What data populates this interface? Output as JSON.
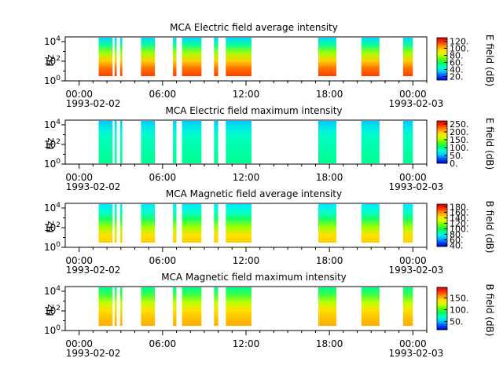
{
  "time_axis": {
    "tick_labels": [
      "00:00",
      "06:00",
      "12:00",
      "18:00",
      "00:00"
    ],
    "tick_hours": [
      0,
      6,
      12,
      18,
      24
    ],
    "date_labels": [
      "1993-02-02",
      "1993-02-03"
    ],
    "minor_tick_hours": [
      1,
      2,
      3,
      4,
      5,
      7,
      8,
      9,
      10,
      11,
      13,
      14,
      15,
      16,
      17,
      19,
      20,
      21,
      22,
      23,
      25
    ],
    "range_hours": [
      -1,
      25
    ]
  },
  "chart_data": [
    {
      "type": "heatmap",
      "title": "MCA  Electric field average intensity",
      "ylabel": "Hz",
      "yscale": "log",
      "y_ticks": [
        "10^0",
        "10^2",
        "10^4"
      ],
      "ylim": [
        1,
        30000
      ],
      "colorbar": {
        "label": "E field (dB)",
        "ticks": [
          "20.",
          "40.",
          "60.",
          "80.",
          "100.",
          "120."
        ],
        "range": [
          10,
          130
        ]
      },
      "data_intervals_hours": [
        [
          1.4,
          2.4
        ],
        [
          2.55,
          2.7
        ],
        [
          2.95,
          3.1
        ],
        [
          4.45,
          5.45
        ],
        [
          6.75,
          7.0
        ],
        [
          7.4,
          8.8
        ],
        [
          9.7,
          10.0
        ],
        [
          10.55,
          12.4
        ],
        [
          17.2,
          18.5
        ],
        [
          20.3,
          21.6
        ],
        [
          23.3,
          24.0
        ]
      ]
    },
    {
      "type": "heatmap",
      "title": "MCA  Electric field maximum intensity",
      "ylabel": "Hz",
      "yscale": "log",
      "y_ticks": [
        "10^0",
        "10^2",
        "10^4"
      ],
      "ylim": [
        1,
        30000
      ],
      "colorbar": {
        "label": "E field (dB)",
        "ticks": [
          "0.",
          "50.",
          "100.",
          "150.",
          "200.",
          "250."
        ],
        "range": [
          0,
          270
        ]
      },
      "data_intervals_hours": [
        [
          1.4,
          2.4
        ],
        [
          2.55,
          2.7
        ],
        [
          2.95,
          3.1
        ],
        [
          4.45,
          5.45
        ],
        [
          6.75,
          7.0
        ],
        [
          7.4,
          8.8
        ],
        [
          9.7,
          10.0
        ],
        [
          10.55,
          12.4
        ],
        [
          17.2,
          18.5
        ],
        [
          20.3,
          21.6
        ],
        [
          23.3,
          24.0
        ]
      ]
    },
    {
      "type": "heatmap",
      "title": "MCA  Magnetic field average intensity",
      "ylabel": "Hz",
      "yscale": "log",
      "y_ticks": [
        "10^0",
        "10^2",
        "10^4"
      ],
      "ylim": [
        1,
        30000
      ],
      "colorbar": {
        "label": "B field (dB)",
        "ticks": [
          "40.",
          "60.",
          "80.",
          "100.",
          "120.",
          "140.",
          "160.",
          "180."
        ],
        "range": [
          35,
          190
        ]
      },
      "data_intervals_hours": [
        [
          1.4,
          2.4
        ],
        [
          2.55,
          2.7
        ],
        [
          2.95,
          3.1
        ],
        [
          4.45,
          5.45
        ],
        [
          6.75,
          7.0
        ],
        [
          7.4,
          8.8
        ],
        [
          9.7,
          10.0
        ],
        [
          10.55,
          12.4
        ],
        [
          17.2,
          18.5
        ],
        [
          20.3,
          21.6
        ],
        [
          23.3,
          24.0
        ]
      ]
    },
    {
      "type": "heatmap",
      "title": "MCA  Magnetic field maximum intensity",
      "ylabel": "Hz",
      "yscale": "log",
      "y_ticks": [
        "10^0",
        "10^2",
        "10^4"
      ],
      "ylim": [
        1,
        30000
      ],
      "colorbar": {
        "label": "B field (dB)",
        "ticks": [
          "50.",
          "100.",
          "150."
        ],
        "range": [
          15,
          195
        ]
      },
      "data_intervals_hours": [
        [
          1.4,
          2.4
        ],
        [
          2.55,
          2.7
        ],
        [
          2.95,
          3.1
        ],
        [
          4.45,
          5.45
        ],
        [
          6.75,
          7.0
        ],
        [
          7.4,
          8.8
        ],
        [
          9.7,
          10.0
        ],
        [
          10.55,
          12.4
        ],
        [
          17.2,
          18.5
        ],
        [
          20.3,
          21.6
        ],
        [
          23.3,
          24.0
        ]
      ]
    }
  ]
}
